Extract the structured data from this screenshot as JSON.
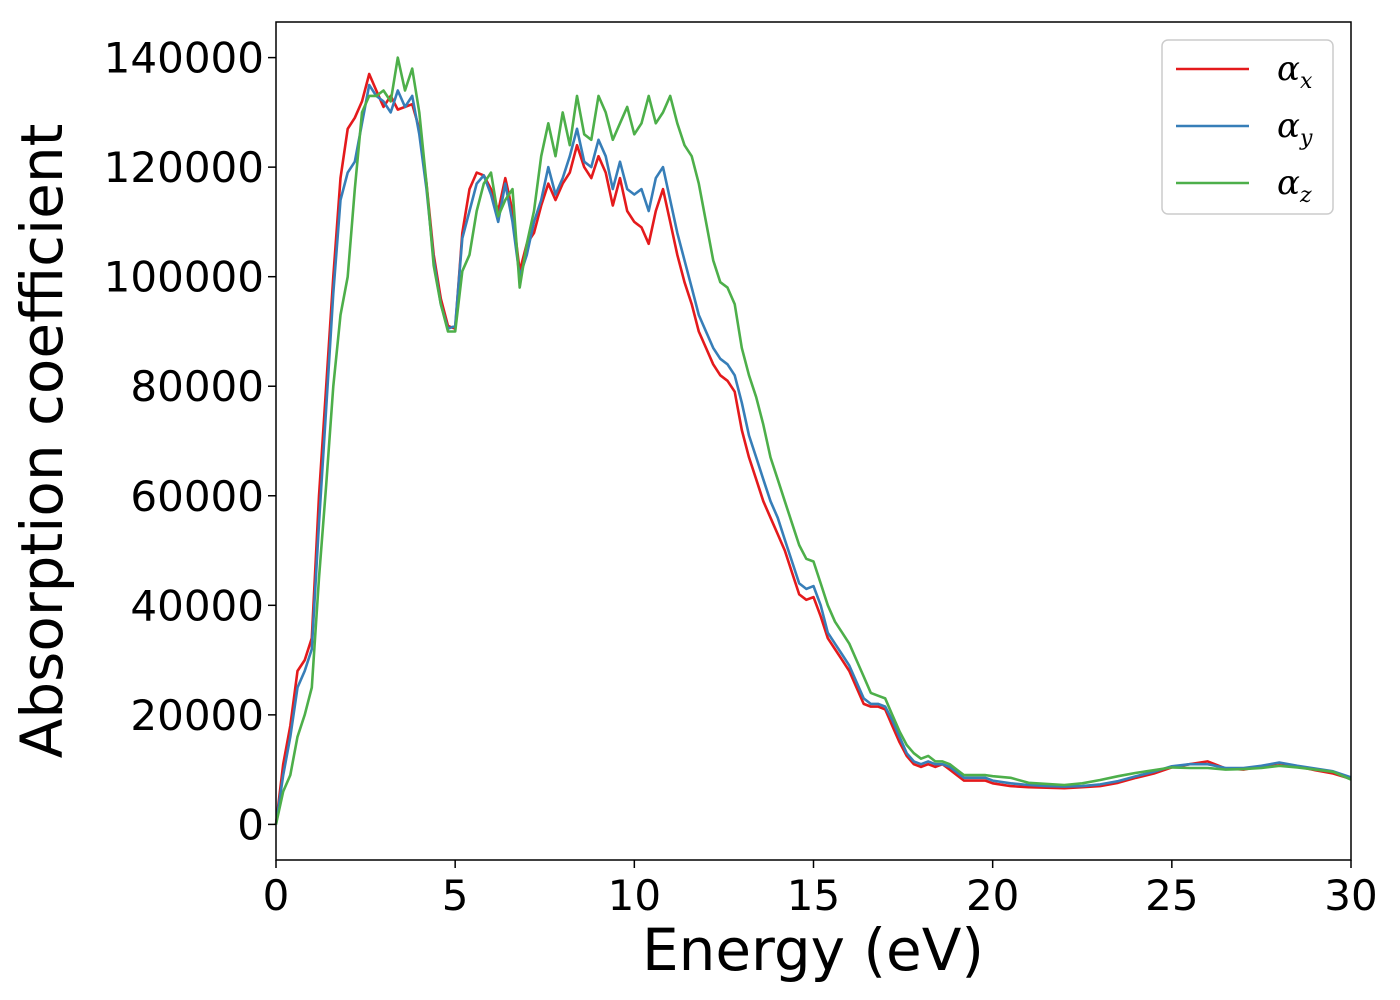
{
  "chart_data": {
    "type": "line",
    "title": "",
    "xlabel": "Energy (eV)",
    "ylabel": "Absorption coefficient",
    "xlim": [
      0,
      30
    ],
    "ylim": [
      -6500,
      146500
    ],
    "xticks": [
      0,
      5,
      10,
      15,
      20,
      25,
      30
    ],
    "yticks": [
      0,
      20000,
      40000,
      60000,
      80000,
      100000,
      120000,
      140000
    ],
    "grid": false,
    "legend": "top-right",
    "series": [
      {
        "name": "α",
        "subscript": "x",
        "color": "#e41a1c",
        "x": [
          0,
          0.2,
          0.4,
          0.6,
          0.8,
          1.0,
          1.2,
          1.4,
          1.6,
          1.8,
          2.0,
          2.2,
          2.4,
          2.6,
          2.8,
          3.0,
          3.2,
          3.4,
          3.6,
          3.8,
          4.0,
          4.2,
          4.4,
          4.6,
          4.8,
          5.0,
          5.2,
          5.4,
          5.6,
          5.8,
          6.0,
          6.2,
          6.4,
          6.6,
          6.8,
          7.0,
          7.2,
          7.4,
          7.6,
          7.8,
          8.0,
          8.2,
          8.4,
          8.6,
          8.8,
          9.0,
          9.2,
          9.4,
          9.6,
          9.8,
          10.0,
          10.2,
          10.4,
          10.6,
          10.8,
          11.0,
          11.2,
          11.4,
          11.6,
          11.8,
          12.0,
          12.2,
          12.4,
          12.6,
          12.8,
          13.0,
          13.2,
          13.4,
          13.6,
          13.8,
          14.0,
          14.2,
          14.4,
          14.6,
          14.8,
          15.0,
          15.2,
          15.4,
          15.6,
          15.8,
          16.0,
          16.2,
          16.4,
          16.6,
          16.8,
          17.0,
          17.2,
          17.4,
          17.6,
          17.8,
          18.0,
          18.2,
          18.4,
          18.6,
          18.8,
          19.0,
          19.2,
          19.4,
          19.6,
          19.8,
          20.0,
          20.5,
          21.0,
          21.5,
          22.0,
          22.5,
          23.0,
          23.5,
          24.0,
          24.5,
          25.0,
          25.5,
          26.0,
          26.5,
          27.0,
          27.5,
          28.0,
          28.5,
          29.0,
          29.5,
          30.0
        ],
        "y": [
          0,
          11000,
          18000,
          28000,
          30000,
          34000,
          60000,
          80000,
          100000,
          118000,
          127000,
          129000,
          132000,
          137000,
          134000,
          131000,
          133000,
          130500,
          131000,
          131500,
          127000,
          117000,
          104000,
          96000,
          91000,
          90500,
          108000,
          116000,
          119000,
          118500,
          116000,
          112000,
          118000,
          112000,
          101000,
          106000,
          108000,
          113000,
          117000,
          114000,
          117000,
          119000,
          124000,
          120000,
          118000,
          122000,
          119000,
          113000,
          118000,
          112000,
          110000,
          109000,
          106000,
          112000,
          116000,
          110000,
          104000,
          99000,
          95000,
          90000,
          87000,
          84000,
          82000,
          81000,
          79000,
          72000,
          67000,
          63000,
          59000,
          56000,
          53000,
          50000,
          46000,
          42000,
          41000,
          41500,
          38000,
          34000,
          32000,
          30000,
          28000,
          25000,
          22000,
          21500,
          21500,
          21000,
          18000,
          15000,
          12500,
          11000,
          10500,
          11000,
          10500,
          11000,
          10000,
          9000,
          8000,
          8000,
          8000,
          8000,
          7500,
          7000,
          6800,
          6700,
          6600,
          6800,
          7000,
          7600,
          8500,
          9300,
          10400,
          11000,
          11500,
          10200,
          10000,
          10600,
          11200,
          10600,
          9900,
          9300,
          8300
        ]
      },
      {
        "name": "α",
        "subscript": "y",
        "color": "#377eb8",
        "x": [
          0,
          0.2,
          0.4,
          0.6,
          0.8,
          1.0,
          1.2,
          1.4,
          1.6,
          1.8,
          2.0,
          2.2,
          2.4,
          2.6,
          2.8,
          3.0,
          3.2,
          3.4,
          3.6,
          3.8,
          4.0,
          4.2,
          4.4,
          4.6,
          4.8,
          5.0,
          5.2,
          5.4,
          5.6,
          5.8,
          6.0,
          6.2,
          6.4,
          6.6,
          6.8,
          7.0,
          7.2,
          7.4,
          7.6,
          7.8,
          8.0,
          8.2,
          8.4,
          8.6,
          8.8,
          9.0,
          9.2,
          9.4,
          9.6,
          9.8,
          10.0,
          10.2,
          10.4,
          10.6,
          10.8,
          11.0,
          11.2,
          11.4,
          11.6,
          11.8,
          12.0,
          12.2,
          12.4,
          12.6,
          12.8,
          13.0,
          13.2,
          13.4,
          13.6,
          13.8,
          14.0,
          14.2,
          14.4,
          14.6,
          14.8,
          15.0,
          15.2,
          15.4,
          15.6,
          15.8,
          16.0,
          16.2,
          16.4,
          16.6,
          16.8,
          17.0,
          17.2,
          17.4,
          17.6,
          17.8,
          18.0,
          18.2,
          18.4,
          18.6,
          18.8,
          19.0,
          19.2,
          19.4,
          19.6,
          19.8,
          20.0,
          20.5,
          21.0,
          21.5,
          22.0,
          22.5,
          23.0,
          23.5,
          24.0,
          24.5,
          25.0,
          25.5,
          26.0,
          26.5,
          27.0,
          27.5,
          28.0,
          28.5,
          29.0,
          29.5,
          30.0
        ],
        "y": [
          0,
          9000,
          16000,
          25000,
          28000,
          32000,
          55000,
          76000,
          97000,
          114000,
          119000,
          121000,
          128000,
          135000,
          133000,
          132000,
          130000,
          134000,
          131000,
          133000,
          126000,
          116000,
          103000,
          95000,
          90500,
          91000,
          107000,
          112000,
          117000,
          118500,
          115000,
          110000,
          117000,
          110000,
          100000,
          104000,
          110000,
          114000,
          120000,
          115000,
          118000,
          122000,
          127000,
          121000,
          120000,
          125000,
          122000,
          116000,
          121000,
          116000,
          115000,
          116000,
          112000,
          118000,
          120000,
          114000,
          108000,
          103000,
          98000,
          93000,
          90000,
          87000,
          85000,
          84000,
          82000,
          77000,
          71000,
          67000,
          63000,
          59000,
          56000,
          52000,
          48000,
          44000,
          43000,
          43500,
          40000,
          35000,
          33000,
          31000,
          29000,
          26000,
          23000,
          22000,
          22000,
          21500,
          19000,
          16000,
          13000,
          11500,
          11000,
          11500,
          11000,
          11000,
          10500,
          9500,
          8500,
          8500,
          8500,
          8500,
          8000,
          7500,
          7200,
          7000,
          6900,
          7000,
          7300,
          7900,
          8800,
          9600,
          10600,
          11000,
          11000,
          10300,
          10300,
          10700,
          11300,
          10700,
          10200,
          9700,
          8600
        ]
      },
      {
        "name": "α",
        "subscript": "z",
        "color": "#4daf4a",
        "x": [
          0,
          0.2,
          0.4,
          0.6,
          0.8,
          1.0,
          1.2,
          1.4,
          1.6,
          1.8,
          2.0,
          2.2,
          2.4,
          2.6,
          2.8,
          3.0,
          3.2,
          3.4,
          3.6,
          3.8,
          4.0,
          4.2,
          4.4,
          4.6,
          4.8,
          5.0,
          5.2,
          5.4,
          5.6,
          5.8,
          6.0,
          6.2,
          6.4,
          6.6,
          6.8,
          7.0,
          7.2,
          7.4,
          7.6,
          7.8,
          8.0,
          8.2,
          8.4,
          8.6,
          8.8,
          9.0,
          9.2,
          9.4,
          9.6,
          9.8,
          10.0,
          10.2,
          10.4,
          10.6,
          10.8,
          11.0,
          11.2,
          11.4,
          11.6,
          11.8,
          12.0,
          12.2,
          12.4,
          12.6,
          12.8,
          13.0,
          13.2,
          13.4,
          13.6,
          13.8,
          14.0,
          14.2,
          14.4,
          14.6,
          14.8,
          15.0,
          15.2,
          15.4,
          15.6,
          15.8,
          16.0,
          16.2,
          16.4,
          16.6,
          16.8,
          17.0,
          17.2,
          17.4,
          17.6,
          17.8,
          18.0,
          18.2,
          18.4,
          18.6,
          18.8,
          19.0,
          19.2,
          19.4,
          19.6,
          19.8,
          20.0,
          20.5,
          21.0,
          21.5,
          22.0,
          22.5,
          23.0,
          23.5,
          24.0,
          24.5,
          25.0,
          25.5,
          26.0,
          26.5,
          27.0,
          27.5,
          28.0,
          28.5,
          29.0,
          29.5,
          30.0
        ],
        "y": [
          0,
          6000,
          9000,
          16000,
          20000,
          25000,
          45000,
          62000,
          80000,
          93000,
          100000,
          116000,
          130000,
          133000,
          133000,
          134000,
          132000,
          140000,
          134000,
          138000,
          130000,
          117000,
          102000,
          95000,
          90000,
          90000,
          101000,
          104000,
          112000,
          117000,
          119000,
          111000,
          114000,
          116000,
          98000,
          106000,
          112000,
          122000,
          128000,
          122000,
          130000,
          124000,
          133000,
          126000,
          125000,
          133000,
          130000,
          125000,
          128000,
          131000,
          126000,
          128000,
          133000,
          128000,
          130000,
          133000,
          128000,
          124000,
          122000,
          117000,
          110000,
          103000,
          99000,
          98000,
          95000,
          87000,
          82000,
          78000,
          73000,
          67000,
          63000,
          59000,
          55000,
          51000,
          48500,
          48000,
          44000,
          40000,
          37000,
          35000,
          33000,
          30000,
          27000,
          24000,
          23500,
          23000,
          20000,
          17000,
          14500,
          13000,
          12000,
          12500,
          11500,
          11500,
          11000,
          10000,
          9000,
          9000,
          9000,
          9000,
          8800,
          8500,
          7600,
          7400,
          7200,
          7500,
          8100,
          8800,
          9400,
          9900,
          10400,
          10300,
          10300,
          10000,
          10100,
          10300,
          10700,
          10400,
          10000,
          9600,
          8200
        ]
      }
    ]
  }
}
